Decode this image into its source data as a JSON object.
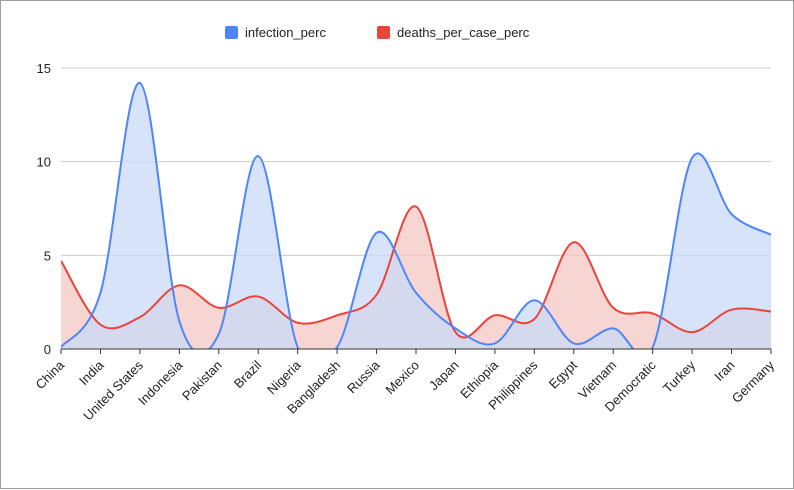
{
  "chart_data": {
    "type": "area",
    "title": "",
    "xlabel": "",
    "ylabel": "",
    "ylim": [
      0,
      15
    ],
    "yticks": [
      0,
      5,
      10,
      15
    ],
    "grid": true,
    "legend_position": "top",
    "categories": [
      "China",
      "India",
      "United States",
      "Indonesia",
      "Pakistan",
      "Brazil",
      "Nigeria",
      "Bangladesh",
      "Russia",
      "Mexico",
      "Japan",
      "Ethiopia",
      "Philippines",
      "Egypt",
      "Vietnam",
      "Democratic",
      "Turkey",
      "Iran",
      "Germany"
    ],
    "series": [
      {
        "name": "infection_perc",
        "color": "#4f86f7",
        "fill": "#c9d9f7",
        "values": [
          0.1,
          3.0,
          14.2,
          1.5,
          0.8,
          10.3,
          0.1,
          0.1,
          6.2,
          3.0,
          1.1,
          0.3,
          2.6,
          0.3,
          1.1,
          0.1,
          10.2,
          7.2,
          6.1
        ]
      },
      {
        "name": "deaths_per_case_perc",
        "color": "#e8453c",
        "fill": "#f4c7c3",
        "values": [
          4.7,
          1.3,
          1.7,
          3.4,
          2.2,
          2.8,
          1.4,
          1.8,
          2.9,
          7.6,
          0.9,
          1.8,
          1.6,
          5.7,
          2.2,
          1.9,
          0.9,
          2.1,
          2.0
        ]
      }
    ]
  }
}
